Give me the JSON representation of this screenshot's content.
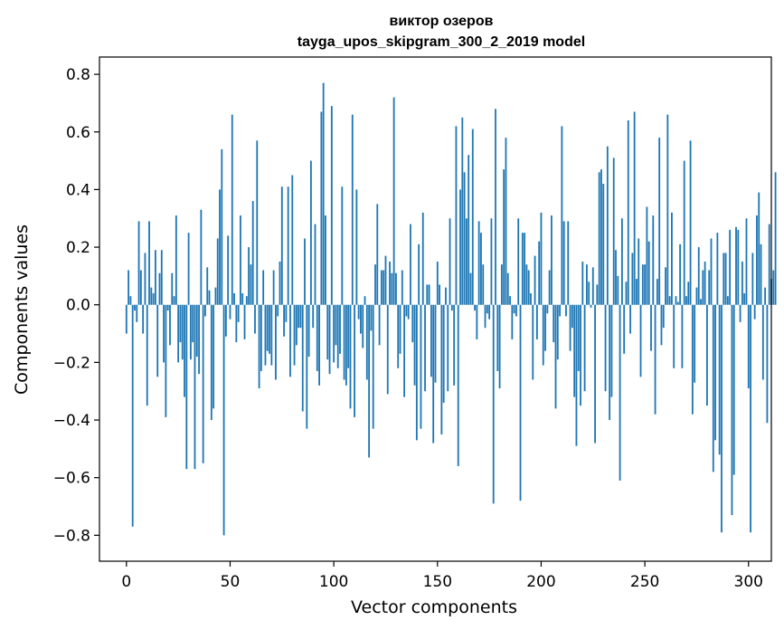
{
  "chart_data": {
    "type": "bar",
    "title": "виктор озеров",
    "subtitle": "tayga_upos_skipgram_300_2_2019 model",
    "xlabel": "Vector components",
    "ylabel": "Components values",
    "xlim": [
      -13,
      311
    ],
    "ylim": [
      -0.89,
      0.86
    ],
    "x_ticks": [
      0,
      50,
      100,
      150,
      200,
      250,
      300
    ],
    "x_tick_labels": [
      "0",
      "50",
      "100",
      "150",
      "200",
      "250",
      "300"
    ],
    "y_ticks": [
      -0.8,
      -0.6,
      -0.4,
      -0.2,
      0.0,
      0.2,
      0.4,
      0.6,
      0.8
    ],
    "y_tick_labels": [
      "−0.8",
      "−0.6",
      "−0.4",
      "−0.2",
      "0.0",
      "0.2",
      "0.4",
      "0.6",
      "0.8"
    ],
    "bar_color": "#1f77b4",
    "grid": false,
    "series": [
      {
        "values": [
          -0.1,
          0.12,
          0.03,
          -0.77,
          -0.02,
          -0.06,
          0.29,
          0.12,
          -0.1,
          0.18,
          -0.35,
          0.29,
          0.06,
          0.04,
          0.19,
          -0.25,
          0.11,
          0.19,
          -0.2,
          -0.39,
          -0.02,
          -0.14,
          0.11,
          0.03,
          0.31,
          -0.2,
          -0.13,
          -0.19,
          -0.32,
          -0.57,
          0.25,
          -0.19,
          -0.13,
          -0.57,
          -0.18,
          -0.24,
          0.33,
          -0.55,
          -0.04,
          0.13,
          0.05,
          -0.4,
          -0.36,
          0.06,
          0.23,
          0.4,
          0.54,
          -0.8,
          -0.11,
          0.24,
          -0.05,
          0.66,
          0.04,
          -0.13,
          -0.06,
          0.31,
          0.04,
          -0.12,
          0.03,
          0.2,
          0.14,
          0.36,
          -0.1,
          0.57,
          -0.29,
          -0.23,
          0.12,
          -0.21,
          -0.16,
          -0.17,
          -0.21,
          0.12,
          -0.26,
          -0.04,
          0.15,
          0.41,
          -0.11,
          -0.06,
          0.41,
          -0.25,
          0.45,
          -0.21,
          -0.14,
          -0.08,
          -0.08,
          -0.37,
          0.23,
          -0.43,
          -0.18,
          0.5,
          -0.08,
          0.28,
          -0.23,
          -0.28,
          0.67,
          0.77,
          0.31,
          -0.19,
          -0.24,
          0.69,
          -0.2,
          -0.14,
          -0.22,
          -0.17,
          0.41,
          -0.26,
          -0.28,
          -0.22,
          -0.36,
          0.66,
          -0.39,
          0.4,
          -0.05,
          -0.1,
          -0.15,
          0.03,
          -0.26,
          -0.53,
          -0.09,
          -0.43,
          0.14,
          0.35,
          -0.14,
          0.12,
          0.12,
          0.17,
          -0.31,
          0.15,
          0.11,
          0.72,
          0.11,
          -0.22,
          -0.17,
          0.12,
          -0.32,
          -0.04,
          -0.05,
          0.28,
          -0.13,
          -0.28,
          -0.47,
          0.21,
          -0.43,
          0.32,
          -0.3,
          0.07,
          0.07,
          -0.25,
          -0.48,
          -0.27,
          0.15,
          0.07,
          -0.45,
          -0.34,
          0.06,
          -0.3,
          0.3,
          -0.02,
          -0.28,
          0.62,
          -0.56,
          0.4,
          0.65,
          0.46,
          0.3,
          0.52,
          0.11,
          0.61,
          -0.02,
          -0.12,
          0.29,
          0.25,
          0.14,
          -0.08,
          -0.03,
          -0.05,
          0.3,
          -0.69,
          0.68,
          -0.23,
          -0.29,
          0.14,
          0.47,
          0.58,
          0.11,
          0.03,
          -0.12,
          -0.03,
          -0.04,
          0.3,
          -0.68,
          0.25,
          0.25,
          0.14,
          0.12,
          0.04,
          -0.26,
          0.17,
          -0.12,
          0.22,
          0.32,
          -0.21,
          -0.16,
          -0.03,
          0.12,
          0.31,
          -0.13,
          -0.36,
          -0.19,
          -0.04,
          0.62,
          0.29,
          -0.04,
          0.29,
          -0.16,
          -0.08,
          -0.32,
          -0.49,
          -0.23,
          -0.35,
          0.15,
          -0.3,
          0.14,
          0.08,
          -0.01,
          0.13,
          -0.48,
          0.07,
          0.46,
          0.47,
          0.42,
          -0.3,
          0.55,
          -0.4,
          -0.32,
          0.51,
          0.19,
          0.1,
          -0.61,
          0.3,
          -0.17,
          0.08,
          0.64,
          -0.1,
          0.18,
          0.67,
          0.09,
          0.23,
          -0.25,
          0.14,
          0.14,
          0.34,
          0.22,
          -0.16,
          0.31,
          -0.38,
          0.09,
          0.58,
          -0.14,
          -0.08,
          0.13,
          0.66,
          0.03,
          0.32,
          -0.22,
          0.03,
          0.01,
          0.21,
          -0.22,
          0.5,
          0.03,
          0.08,
          0.57,
          -0.38,
          -0.27,
          0.06,
          0.2,
          0.02,
          0.12,
          0.15,
          -0.35,
          0.12,
          0.23,
          -0.58,
          -0.47,
          0.25,
          -0.52,
          -0.79,
          0.18,
          0.18,
          0.03,
          0.26,
          -0.73,
          -0.59,
          0.27,
          0.26,
          -0.06,
          0.15,
          0.04,
          0.3,
          -0.29,
          -0.79,
          0.18,
          -0.05,
          0.31,
          0.39,
          0.21,
          -0.26,
          0.06,
          -0.41,
          0.28,
          0.09,
          0.12,
          0.46
        ]
      }
    ]
  }
}
